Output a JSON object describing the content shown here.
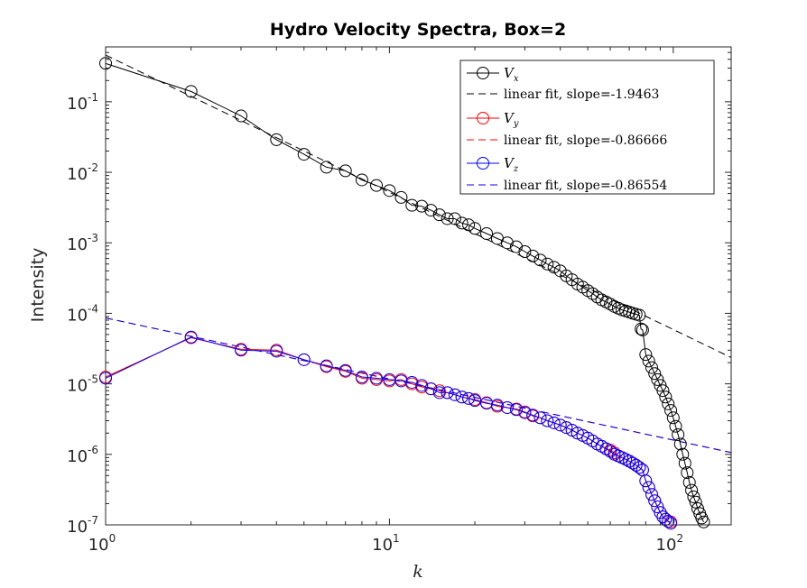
{
  "chart_data": {
    "type": "scatter",
    "title": "Hydro Velocity Spectra, Box=2",
    "xlabel": "k",
    "ylabel": "Intensity",
    "xscale": "log",
    "yscale": "log",
    "xlim": [
      1,
      160
    ],
    "ylim": [
      1e-07,
      0.6
    ],
    "grid": false,
    "legend_position": "top-right",
    "x_ticks": [
      {
        "base": "10",
        "exp": "0",
        "value": 1
      },
      {
        "base": "10",
        "exp": "1",
        "value": 10
      },
      {
        "base": "10",
        "exp": "2",
        "value": 100
      }
    ],
    "y_ticks": [
      {
        "base": "10",
        "exp": "-7",
        "value": 1e-07
      },
      {
        "base": "10",
        "exp": "-6",
        "value": 1e-06
      },
      {
        "base": "10",
        "exp": "-5",
        "value": 1e-05
      },
      {
        "base": "10",
        "exp": "-4",
        "value": 0.0001
      },
      {
        "base": "10",
        "exp": "-3",
        "value": 0.001
      },
      {
        "base": "10",
        "exp": "-2",
        "value": 0.01
      },
      {
        "base": "10",
        "exp": "-1",
        "value": 0.1
      }
    ],
    "series": [
      {
        "legend_main": "V",
        "legend_sub": "x",
        "color": "#000000",
        "x": [
          1,
          2,
          3,
          4,
          5,
          6,
          7,
          8,
          9,
          10,
          11,
          12,
          13,
          14,
          15,
          16,
          17,
          18,
          19,
          20,
          22,
          24,
          26,
          28,
          30,
          32,
          34,
          36,
          38,
          40,
          42,
          44,
          46,
          48,
          50,
          52,
          54,
          56,
          58,
          60,
          62,
          64,
          66,
          68,
          70,
          72,
          74,
          76,
          77,
          78,
          80,
          82,
          84,
          86,
          88,
          90,
          92,
          94,
          96,
          98,
          100,
          102,
          104,
          106,
          108,
          110,
          112,
          114,
          116,
          118,
          120,
          122,
          124,
          126,
          128
        ],
        "y": [
          0.35,
          0.14,
          0.063,
          0.029,
          0.018,
          0.0118,
          0.0105,
          0.0078,
          0.0065,
          0.0055,
          0.0044,
          0.0034,
          0.0033,
          0.0029,
          0.0025,
          0.0022,
          0.0022,
          0.0019,
          0.0018,
          0.0016,
          0.00135,
          0.00115,
          0.001,
          0.00088,
          0.00075,
          0.00065,
          0.00057,
          0.0005,
          0.00045,
          0.0004,
          0.00034,
          0.0003,
          0.00026,
          0.000235,
          0.00021,
          0.00019,
          0.00017,
          0.000155,
          0.000145,
          0.000135,
          0.000125,
          0.000118,
          0.000112,
          0.000108,
          0.000104,
          0.0001,
          9.7e-05,
          9.4e-05,
          6e-05,
          5.8e-05,
          2.6e-05,
          2.1e-05,
          1.7e-05,
          1.4e-05,
          1.15e-05,
          9.5e-06,
          8e-06,
          6.5e-06,
          5.2e-06,
          4.2e-06,
          3.3e-06,
          2.5e-06,
          1.9e-06,
          1.4e-06,
          1e-06,
          7.5e-07,
          5.5e-07,
          4e-07,
          3.1e-07,
          2.5e-07,
          2.1e-07,
          1.7e-07,
          1.45e-07,
          1.25e-07,
          1.1e-07
        ]
      },
      {
        "legend_main": "V",
        "legend_sub": "y",
        "color": "#ff0000",
        "x": [
          1,
          2,
          3,
          4,
          5,
          6,
          7,
          8,
          9,
          10,
          11,
          12,
          13,
          14,
          15,
          16,
          17,
          18,
          19,
          20,
          22,
          24,
          26,
          28,
          30,
          32,
          34,
          36,
          38,
          40,
          42,
          44,
          46,
          48,
          50,
          52,
          54,
          56,
          58,
          60,
          62,
          64,
          66,
          68,
          70,
          72,
          74,
          76,
          78,
          80,
          82,
          84,
          86,
          88,
          90,
          92,
          94,
          96,
          98
        ],
        "y": [
          1.25e-05,
          4.5e-05,
          3.1e-05,
          3e-05,
          2.2e-05,
          1.75e-05,
          1.5e-05,
          1.2e-05,
          1.15e-05,
          1.1e-05,
          1.15e-05,
          1e-05,
          9e-06,
          8.5e-06,
          8e-06,
          7.5e-06,
          7e-06,
          6.5e-06,
          6.2e-06,
          6e-06,
          5.4e-06,
          4.8e-06,
          4.6e-06,
          4.4e-06,
          4e-06,
          3.5e-06,
          3.3e-06,
          3e-06,
          2.8e-06,
          2.6e-06,
          2.4e-06,
          2.2e-06,
          2e-06,
          1.85e-06,
          1.7e-06,
          1.55e-06,
          1.4e-06,
          1.3e-06,
          1.2e-06,
          1.15e-06,
          1.05e-06,
          9.5e-07,
          9e-07,
          8.5e-07,
          8e-07,
          7.5e-07,
          7e-07,
          6.5e-07,
          6e-07,
          4.2e-07,
          3.4e-07,
          2.7e-07,
          2.2e-07,
          1.8e-07,
          1.5e-07,
          1.3e-07,
          1.2e-07,
          1.12e-07,
          1.1e-07
        ]
      },
      {
        "legend_main": "V",
        "legend_sub": "z",
        "color": "#0000ff",
        "x": [
          1,
          2,
          3,
          4,
          5,
          6,
          7,
          8,
          9,
          10,
          11,
          12,
          13,
          14,
          15,
          16,
          17,
          18,
          19,
          20,
          22,
          24,
          26,
          28,
          30,
          32,
          34,
          36,
          38,
          40,
          42,
          44,
          46,
          48,
          50,
          52,
          54,
          56,
          58,
          60,
          62,
          64,
          66,
          68,
          70,
          72,
          74,
          76,
          78,
          80,
          82,
          84,
          86,
          88,
          90,
          92,
          94,
          96,
          98
        ],
        "y": [
          1.2e-05,
          4.6e-05,
          3e-05,
          2.9e-05,
          2.2e-05,
          1.8e-05,
          1.55e-05,
          1.25e-05,
          1.2e-05,
          1.15e-05,
          1.1e-05,
          1.05e-05,
          9.5e-06,
          8.5e-06,
          7.5e-06,
          7.5e-06,
          7e-06,
          6.5e-06,
          6.2e-06,
          5.8e-06,
          5.3e-06,
          5e-06,
          4.6e-06,
          4.3e-06,
          3.9e-06,
          3.6e-06,
          3.3e-06,
          3e-06,
          2.8e-06,
          2.6e-06,
          2.4e-06,
          2.2e-06,
          2e-06,
          1.85e-06,
          1.7e-06,
          1.55e-06,
          1.4e-06,
          1.3e-06,
          1.2e-06,
          1.1e-06,
          1e-06,
          9.5e-07,
          9e-07,
          8.5e-07,
          8e-07,
          7.5e-07,
          7e-07,
          6.5e-07,
          6e-07,
          4.2e-07,
          3.4e-07,
          2.7e-07,
          2.2e-07,
          1.8e-07,
          1.5e-07,
          1.3e-07,
          1.2e-07,
          1.12e-07,
          1.05e-07
        ]
      }
    ],
    "fits": [
      {
        "label": "linear fit, slope=-1.9463",
        "color": "#000000",
        "slope": -1.9463,
        "intercept_at_k1": 0.46
      },
      {
        "label": "linear fit, slope=-0.86666",
        "color": "#ff0000",
        "slope": -0.86666,
        "intercept_at_k1": 8.6e-05
      },
      {
        "label": "linear fit, slope=-0.86554",
        "color": "#0000ff",
        "slope": -0.86554,
        "intercept_at_k1": 8.6e-05
      }
    ]
  }
}
